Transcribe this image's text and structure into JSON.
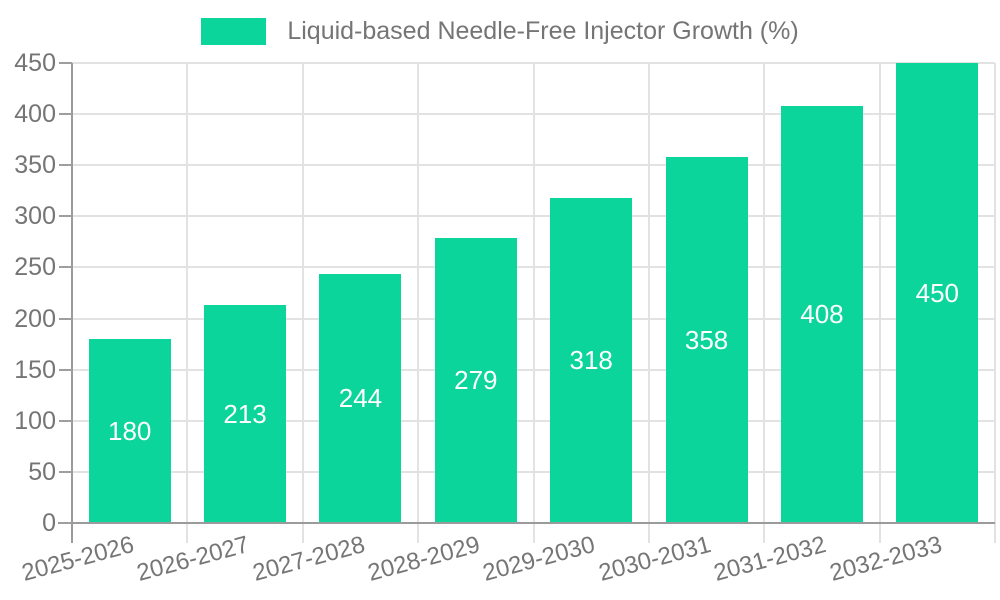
{
  "legend": {
    "label": "Liquid-based Needle-Free Injector Growth (%)"
  },
  "chart_data": {
    "type": "bar",
    "title": "Liquid-based Needle-Free Injector Growth (%)",
    "categories": [
      "2025-2026",
      "2026-2027",
      "2027-2028",
      "2028-2029",
      "2029-2030",
      "2030-2031",
      "2031-2032",
      "2032-2033"
    ],
    "values": [
      180,
      213,
      244,
      279,
      318,
      358,
      408,
      450
    ],
    "xlabel": "",
    "ylabel": "",
    "ylim": [
      0,
      450
    ],
    "ytick_step": 50,
    "yticks": [
      0,
      50,
      100,
      150,
      200,
      250,
      300,
      350,
      400,
      450
    ],
    "grid": true,
    "value_labels": "inside-center",
    "x_label_rotation_deg": -15,
    "legend_position": "top-center",
    "colors": {
      "bar": "#0bd59b",
      "bar_label": "#ffffff",
      "axis_text": "#757575",
      "axis_line": "#9b9b9b",
      "gridline": "#e2e2e2",
      "background": "#ffffff"
    }
  }
}
